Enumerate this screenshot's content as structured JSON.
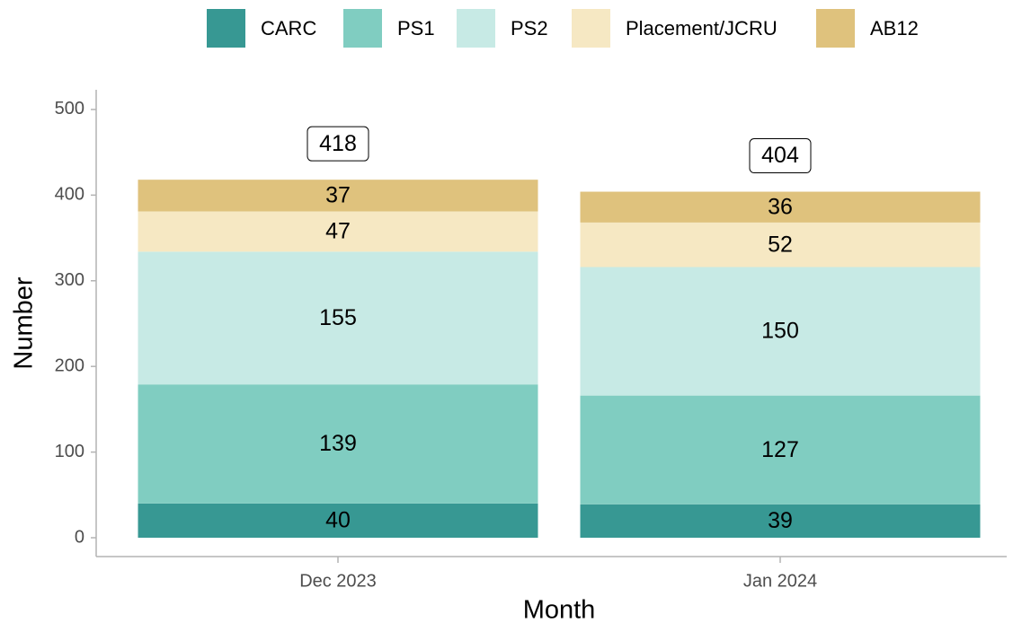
{
  "chart_data": {
    "type": "stacked_bar",
    "categories": [
      "Dec 2023",
      "Jan 2024"
    ],
    "series": [
      {
        "name": "CARC",
        "color": "#379893",
        "values": [
          40,
          39
        ]
      },
      {
        "name": "PS1",
        "color": "#80cdc1",
        "values": [
          139,
          127
        ]
      },
      {
        "name": "PS2",
        "color": "#c7eae5",
        "values": [
          155,
          150
        ]
      },
      {
        "name": "Placement/JCRU",
        "color": "#f6e8c3",
        "values": [
          47,
          52
        ]
      },
      {
        "name": "AB12",
        "color": "#dfc27d",
        "values": [
          37,
          36
        ]
      }
    ],
    "totals": [
      418,
      404
    ],
    "x_label": "Month",
    "y_label": "Number",
    "ylim": [
      -22,
      523
    ],
    "yticks": [
      0,
      100,
      200,
      300,
      400,
      500
    ],
    "legend": "top"
  }
}
